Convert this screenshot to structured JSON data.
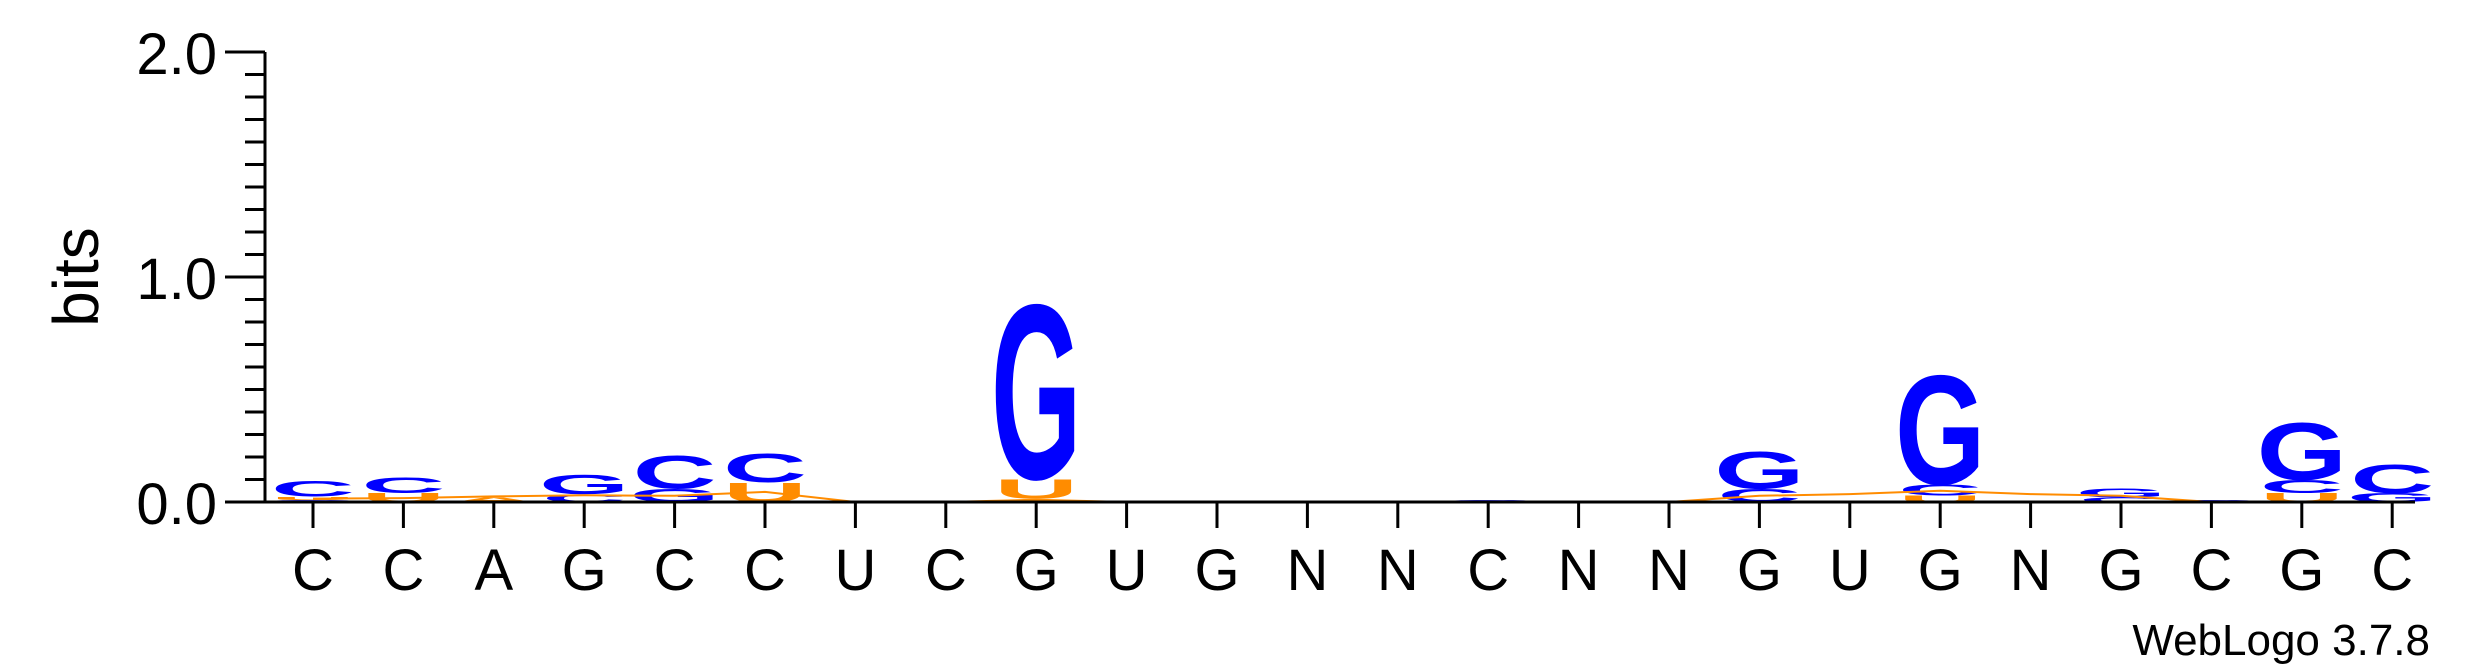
{
  "chart_data": {
    "type": "sequence_logo",
    "ylabel": "bits",
    "ylim": [
      0,
      2.0
    ],
    "y_ticks": [
      "0.0",
      "1.0",
      "2.0"
    ],
    "colors": {
      "C": "#0000ff",
      "G": "#0000ff",
      "U": "#ff8c00",
      "A": "#ff8c00"
    },
    "credit": "WebLogo 3.7.8",
    "positions": [
      {
        "label": "C",
        "stack": [
          {
            "letter": "G",
            "height": 0.01
          },
          {
            "letter": "U",
            "height": 0.015
          },
          {
            "letter": "C",
            "height": 0.07
          }
        ]
      },
      {
        "label": "C",
        "stack": [
          {
            "letter": "U",
            "height": 0.04
          },
          {
            "letter": "C",
            "height": 0.07
          }
        ]
      },
      {
        "label": "A",
        "stack": [
          {
            "letter": "A",
            "height": 0.02
          }
        ]
      },
      {
        "label": "G",
        "stack": [
          {
            "letter": "C",
            "height": 0.035
          },
          {
            "letter": "G",
            "height": 0.09
          }
        ]
      },
      {
        "label": "C",
        "stack": [
          {
            "letter": "G",
            "height": 0.06
          },
          {
            "letter": "C",
            "height": 0.15
          }
        ]
      },
      {
        "label": "C",
        "stack": [
          {
            "letter": "U",
            "height": 0.09
          },
          {
            "letter": "C",
            "height": 0.13
          }
        ]
      },
      {
        "label": "U",
        "stack": []
      },
      {
        "label": "C",
        "stack": []
      },
      {
        "label": "G",
        "stack": [
          {
            "letter": "A",
            "height": 0.015
          },
          {
            "letter": "U",
            "height": 0.09
          },
          {
            "letter": "G",
            "height": 0.8
          }
        ]
      },
      {
        "label": "U",
        "stack": []
      },
      {
        "label": "G",
        "stack": []
      },
      {
        "label": "N",
        "stack": []
      },
      {
        "label": "N",
        "stack": []
      },
      {
        "label": "C",
        "stack": [
          {
            "letter": "C",
            "height": 0.01
          }
        ]
      },
      {
        "label": "N",
        "stack": []
      },
      {
        "label": "N",
        "stack": []
      },
      {
        "label": "G",
        "stack": [
          {
            "letter": "C",
            "height": 0.06
          },
          {
            "letter": "G",
            "height": 0.17
          }
        ]
      },
      {
        "label": "U",
        "stack": []
      },
      {
        "label": "G",
        "stack": [
          {
            "letter": "U",
            "height": 0.03
          },
          {
            "letter": "C",
            "height": 0.05
          },
          {
            "letter": "G",
            "height": 0.5
          }
        ]
      },
      {
        "label": "N",
        "stack": []
      },
      {
        "label": "G",
        "stack": [
          {
            "letter": "C",
            "height": 0.02
          },
          {
            "letter": "G",
            "height": 0.04
          }
        ]
      },
      {
        "label": "C",
        "stack": [
          {
            "letter": "C",
            "height": 0.01
          }
        ]
      },
      {
        "label": "G",
        "stack": [
          {
            "letter": "U",
            "height": 0.04
          },
          {
            "letter": "C",
            "height": 0.06
          },
          {
            "letter": "G",
            "height": 0.26
          }
        ]
      },
      {
        "label": "C",
        "stack": [
          {
            "letter": "G",
            "height": 0.04
          },
          {
            "letter": "C",
            "height": 0.13
          }
        ]
      }
    ],
    "trace": {
      "color": "#ff8c00",
      "values": [
        0.03,
        0.035,
        0.05,
        0.06,
        0.055,
        0.09,
        0.0,
        0.0,
        0.02,
        0.0,
        0.0,
        0.0,
        0.0,
        0.0,
        0.0,
        0.0,
        0.055,
        0.07,
        0.1,
        0.07,
        0.055,
        0.0,
        0.0,
        0.0
      ]
    }
  }
}
